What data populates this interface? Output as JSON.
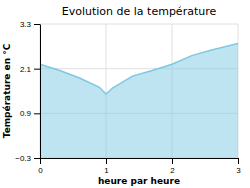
{
  "chart_data": {
    "type": "area",
    "title": "Evolution de la température",
    "xlabel": "heure par heure",
    "ylabel": "Température en °C",
    "x": [
      0,
      0.3,
      0.6,
      0.9,
      1.0,
      1.1,
      1.4,
      1.7,
      2.0,
      2.3,
      2.6,
      3.0
    ],
    "values": [
      2.22,
      2.05,
      1.85,
      1.6,
      1.42,
      1.58,
      1.9,
      2.05,
      2.22,
      2.45,
      2.6,
      2.78
    ],
    "color": "#7ec8e3",
    "xlim": [
      0,
      3
    ],
    "ylim": [
      -0.3,
      3.3
    ],
    "xticks": [
      0,
      1,
      2,
      3
    ],
    "yticks": [
      {
        "value": -0.3,
        "label": "−0.3"
      },
      0.9,
      2.1,
      3.3
    ],
    "grid": true
  }
}
